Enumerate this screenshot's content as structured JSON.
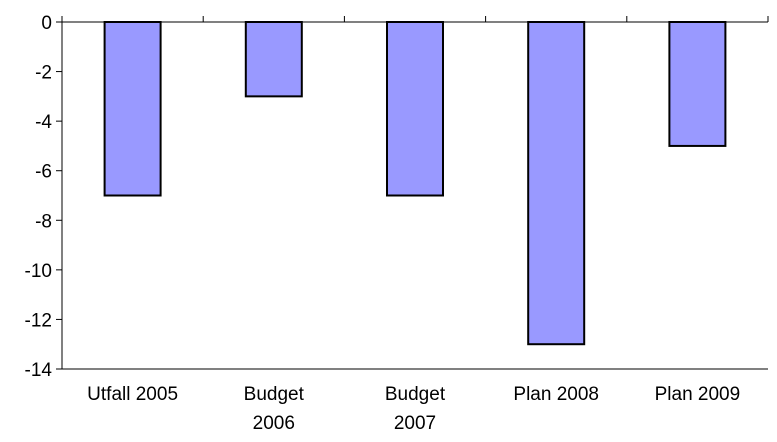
{
  "chart_data": {
    "type": "bar",
    "categories": [
      [
        "Utfall 2005"
      ],
      [
        "Budget",
        "2006"
      ],
      [
        "Budget",
        "2007"
      ],
      [
        "Plan 2008"
      ],
      [
        "Plan 2009"
      ]
    ],
    "values": [
      -7,
      -3,
      -7,
      -13,
      -5
    ],
    "ylim": [
      -14,
      0
    ],
    "yticks": [
      "0",
      "-2",
      "-4",
      "-6",
      "-8",
      "-10",
      "-12",
      "-14"
    ],
    "grid": false,
    "legend": "none",
    "colors": {
      "bar_fill": "#9999FF",
      "bar_stroke": "#000000",
      "axis": "#000000"
    }
  }
}
